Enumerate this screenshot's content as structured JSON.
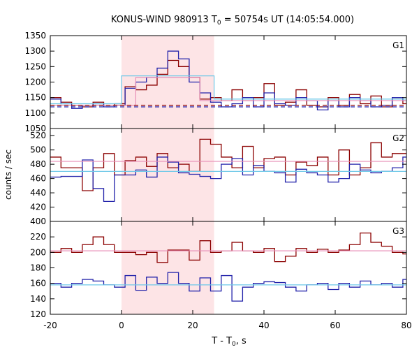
{
  "chart_data": {
    "type": "line",
    "title": "KONUS-WIND 980913 T",
    "title_sub": "0",
    "title_rest": " = 50754s UT (14:05:54.000)",
    "xlabel": "T - T",
    "xlabel_sub": "0",
    "xlabel_rest": ", s",
    "ylabel": "counts / sec",
    "xlim": [
      -20,
      80
    ],
    "x_ticks": [
      -20,
      0,
      20,
      40,
      60,
      80
    ],
    "shaded_interval": [
      0,
      26
    ],
    "grid": false,
    "legend": "none",
    "colors": {
      "series1": "#8b0000",
      "series2": "#2222aa",
      "model1": "#e890b8",
      "model2": "#6ec8e8",
      "shade": "#fde4e6"
    },
    "panels": [
      {
        "label": "G1",
        "ylim": [
          1050,
          1350
        ],
        "y_ticks": [
          1050,
          1100,
          1150,
          1200,
          1250,
          1300,
          1350
        ],
        "series": [
          {
            "role": "series1",
            "bin_edges": [
              -20,
              -17,
              -14,
              -11,
              -8,
              -5,
              -2,
              1,
              4,
              7,
              10,
              13,
              16,
              19,
              22,
              25,
              28,
              31,
              34,
              37,
              40,
              43,
              46,
              49,
              52,
              55,
              58,
              61,
              64,
              67,
              70,
              73,
              76,
              79,
              80
            ],
            "values": [
              1150,
              1135,
              1125,
              1120,
              1135,
              1125,
              1130,
              1185,
              1175,
              1190,
              1225,
              1270,
              1250,
              1215,
              1145,
              1150,
              1140,
              1175,
              1140,
              1150,
              1195,
              1125,
              1135,
              1175,
              1125,
              1120,
              1150,
              1125,
              1160,
              1130,
              1155,
              1120,
              1145,
              1130
            ]
          },
          {
            "role": "series2",
            "bin_edges": [
              -20,
              -17,
              -14,
              -11,
              -8,
              -5,
              -2,
              1,
              4,
              7,
              10,
              13,
              16,
              19,
              22,
              25,
              28,
              31,
              34,
              37,
              40,
              43,
              46,
              49,
              52,
              55,
              58,
              61,
              64,
              67,
              70,
              73,
              76,
              79,
              80
            ],
            "values": [
              1145,
              1130,
              1115,
              1125,
              1130,
              1120,
              1125,
              1180,
              1200,
              1215,
              1245,
              1300,
              1275,
              1200,
              1165,
              1135,
              1120,
              1130,
              1150,
              1120,
              1165,
              1130,
              1125,
              1150,
              1140,
              1110,
              1140,
              1120,
              1150,
              1140,
              1120,
              1125,
              1150,
              1140
            ]
          },
          {
            "role": "model1",
            "bin_edges": [
              -20,
              4,
              22,
              80
            ],
            "values": [
              1125,
              1215,
              1140
            ]
          },
          {
            "role": "model2",
            "bin_edges": [
              -20,
              0,
              26,
              80
            ],
            "values": [
              1130,
              1220,
              1145
            ]
          },
          {
            "role": "background1",
            "y": 1125
          },
          {
            "role": "background2",
            "y": 1120
          }
        ]
      },
      {
        "label": "G2",
        "ylim": [
          400,
          530
        ],
        "y_ticks": [
          400,
          420,
          440,
          460,
          480,
          500,
          520
        ],
        "series": [
          {
            "role": "series1",
            "bin_edges": [
              -20,
              -17,
              -14,
              -11,
              -8,
              -5,
              -2,
              1,
              4,
              7,
              10,
              13,
              16,
              19,
              22,
              25,
              28,
              31,
              34,
              37,
              40,
              43,
              46,
              49,
              52,
              55,
              58,
              61,
              64,
              67,
              70,
              73,
              76,
              79,
              80
            ],
            "values": [
              490,
              475,
              475,
              443,
              475,
              495,
              465,
              485,
              490,
              477,
              495,
              475,
              480,
              470,
              515,
              508,
              490,
              475,
              505,
              475,
              488,
              490,
              465,
              483,
              478,
              490,
              465,
              500,
              465,
              475,
              510,
              490,
              495,
              495
            ]
          },
          {
            "role": "series2",
            "bin_edges": [
              -20,
              -17,
              -14,
              -11,
              -8,
              -5,
              -2,
              1,
              4,
              7,
              10,
              13,
              16,
              19,
              22,
              25,
              28,
              31,
              34,
              37,
              40,
              43,
              46,
              49,
              52,
              55,
              58,
              61,
              64,
              67,
              70,
              73,
              76,
              79,
              80
            ],
            "values": [
              462,
              463,
              463,
              486,
              446,
              428,
              465,
              465,
              472,
              462,
              490,
              483,
              468,
              466,
              463,
              460,
              480,
              488,
              465,
              478,
              470,
              468,
              455,
              473,
              468,
              465,
              455,
              460,
              480,
              472,
              468,
              470,
              475,
              490
            ]
          },
          {
            "role": "model1",
            "y": 484
          },
          {
            "role": "model2",
            "y": 470
          }
        ]
      },
      {
        "label": "G3",
        "ylim": [
          120,
          240
        ],
        "y_ticks": [
          120,
          140,
          160,
          180,
          200,
          220
        ],
        "series": [
          {
            "role": "series1",
            "bin_edges": [
              -20,
              -17,
              -14,
              -11,
              -8,
              -5,
              -2,
              1,
              4,
              7,
              10,
              13,
              16,
              19,
              22,
              25,
              28,
              31,
              34,
              37,
              40,
              43,
              46,
              49,
              52,
              55,
              58,
              61,
              64,
              67,
              70,
              73,
              76,
              79,
              80
            ],
            "values": [
              200,
              205,
              200,
              210,
              220,
              210,
              200,
              200,
              197,
              200,
              187,
              203,
              203,
              190,
              215,
              200,
              202,
              213,
              202,
              200,
              205,
              188,
              195,
              205,
              200,
              204,
              200,
              203,
              210,
              225,
              213,
              208,
              200,
              198
            ]
          },
          {
            "role": "series2",
            "bin_edges": [
              -20,
              -17,
              -14,
              -11,
              -8,
              -5,
              -2,
              1,
              4,
              7,
              10,
              13,
              16,
              19,
              22,
              25,
              28,
              31,
              34,
              37,
              40,
              43,
              46,
              49,
              52,
              55,
              58,
              61,
              64,
              67,
              70,
              73,
              76,
              79,
              80
            ],
            "values": [
              160,
              155,
              160,
              165,
              163,
              158,
              155,
              170,
              151,
              168,
              160,
              174,
              160,
              150,
              167,
              150,
              170,
              137,
              155,
              160,
              162,
              161,
              155,
              150,
              158,
              160,
              152,
              160,
              155,
              163,
              158,
              160,
              155,
              165
            ]
          },
          {
            "role": "model1",
            "y": 202
          },
          {
            "role": "model2",
            "y": 158
          }
        ]
      }
    ]
  }
}
